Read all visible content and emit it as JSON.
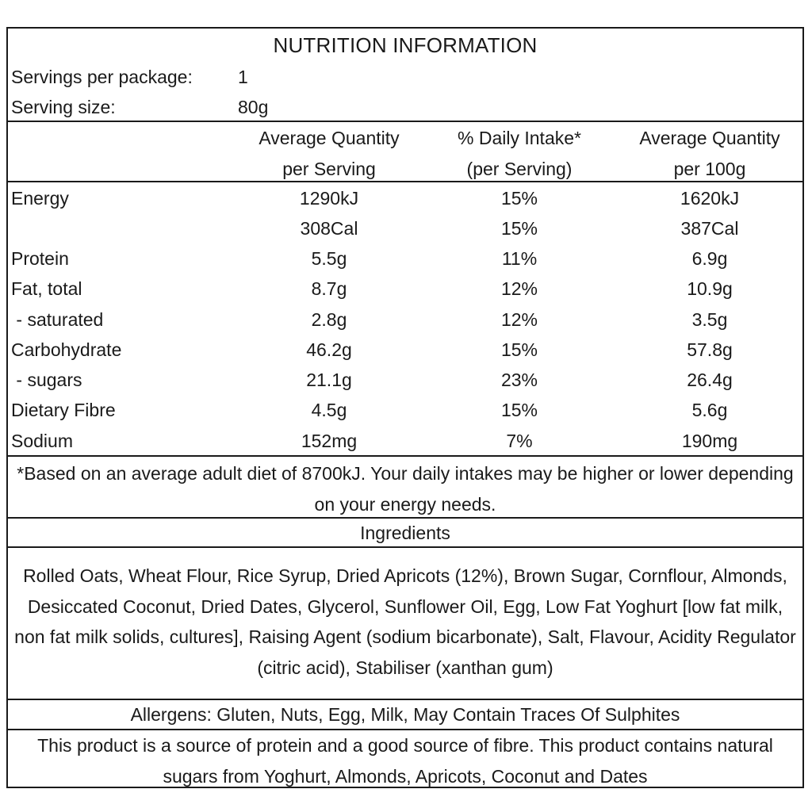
{
  "title": "NUTRITION INFORMATION",
  "servings": {
    "per_package_label": "Servings per package:",
    "per_package_value": "1",
    "size_label": "Serving size:",
    "size_value": "80g"
  },
  "headers": {
    "col2_line1": "Average Quantity",
    "col2_line2": "per Serving",
    "col3_line1": "% Daily Intake*",
    "col3_line2": "(per Serving)",
    "col4_line1": "Average Quantity",
    "col4_line2": "per 100g"
  },
  "rows": [
    {
      "name": "Energy",
      "per_serving": "1290kJ",
      "daily_intake": "15%",
      "per_100g": "1620kJ"
    },
    {
      "name": "",
      "per_serving": "308Cal",
      "daily_intake": "15%",
      "per_100g": "387Cal"
    },
    {
      "name": "Protein",
      "per_serving": "5.5g",
      "daily_intake": "11%",
      "per_100g": "6.9g"
    },
    {
      "name": "Fat, total",
      "per_serving": "8.7g",
      "daily_intake": "12%",
      "per_100g": "10.9g"
    },
    {
      "name": " - saturated",
      "per_serving": "2.8g",
      "daily_intake": "12%",
      "per_100g": "3.5g"
    },
    {
      "name": "Carbohydrate",
      "per_serving": "46.2g",
      "daily_intake": "15%",
      "per_100g": "57.8g"
    },
    {
      "name": " - sugars",
      "per_serving": "21.1g",
      "daily_intake": "23%",
      "per_100g": "26.4g"
    },
    {
      "name": "Dietary Fibre",
      "per_serving": "4.5g",
      "daily_intake": "15%",
      "per_100g": "5.6g"
    },
    {
      "name": "Sodium",
      "per_serving": "152mg",
      "daily_intake": "7%",
      "per_100g": "190mg"
    }
  ],
  "footnote": "*Based on an average adult diet of 8700kJ. Your daily intakes may be higher or lower depending on your energy needs.",
  "ingredients_heading": "Ingredients",
  "ingredients": "Rolled Oats, Wheat Flour, Rice Syrup, Dried Apricots (12%), Brown Sugar, Cornflour, Almonds, Desiccated Coconut, Dried Dates, Glycerol, Sunflower Oil, Egg, Low Fat Yoghurt [low fat milk, non fat milk solids, cultures], Raising Agent (sodium bicarbonate), Salt, Flavour, Acidity Regulator (citric acid), Stabiliser (xanthan gum)",
  "allergens": "Allergens: Gluten, Nuts, Egg, Milk, May Contain Traces Of Sulphites",
  "claim": "This product is a source of protein and a good source of fibre. This product contains natural sugars from Yoghurt, Almonds, Apricots, Coconut and Dates"
}
